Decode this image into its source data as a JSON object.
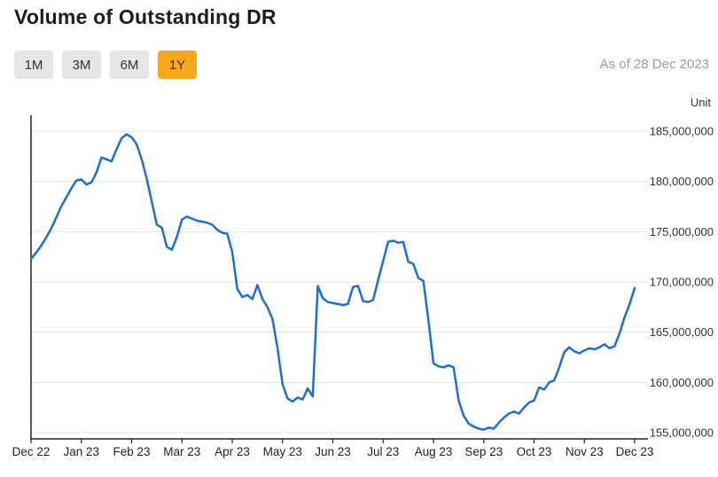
{
  "header": {
    "title": "Volume of Outstanding DR",
    "as_of": "As of 28 Dec 2023",
    "unit_label": "Unit"
  },
  "controls": {
    "range_buttons": [
      {
        "label": "1M",
        "active": false
      },
      {
        "label": "3M",
        "active": false
      },
      {
        "label": "6M",
        "active": false
      },
      {
        "label": "1Y",
        "active": true
      }
    ]
  },
  "colors": {
    "accent_active_range": "#f9a81b",
    "inactive_button_bg": "#e6e6e6",
    "line": "#1a6fd8",
    "grid": "#e2e2e2",
    "axis": "#222222",
    "muted_text": "#9b9b9b"
  },
  "chart_data": {
    "type": "line",
    "title": "Volume of Outstanding DR",
    "x_tick_labels": [
      "Dec 22",
      "Jan 23",
      "Feb 23",
      "Mar 23",
      "Apr 23",
      "May 23",
      "Jun 23",
      "Jul 23",
      "Aug 23",
      "Sep 23",
      "Oct 23",
      "Nov 23",
      "Dec 23"
    ],
    "y_tick_values": [
      155000000,
      160000000,
      165000000,
      170000000,
      175000000,
      180000000,
      185000000
    ],
    "ylim": [
      155000000,
      185000000
    ],
    "ylabel": "Unit",
    "grid": "horizontal",
    "legend": "none",
    "line_color": "#1a6fd8",
    "grid_color": "#e2e2e2",
    "axis_color": "#222222",
    "series": [
      {
        "name": "Volume of Outstanding DR",
        "values": [
          172300000,
          172900000,
          173600000,
          174400000,
          175300000,
          176400000,
          177500000,
          178400000,
          179300000,
          180100000,
          180200000,
          179700000,
          179900000,
          180900000,
          182400000,
          182200000,
          182000000,
          183200000,
          184300000,
          184700000,
          184400000,
          183700000,
          182200000,
          180300000,
          178000000,
          175700000,
          175400000,
          173500000,
          173200000,
          174500000,
          176200000,
          176500000,
          176300000,
          176100000,
          176000000,
          175900000,
          175700000,
          175200000,
          174900000,
          174800000,
          173000000,
          169300000,
          168500000,
          168700000,
          168300000,
          169700000,
          168300000,
          167500000,
          166300000,
          163400000,
          159800000,
          158400000,
          158100000,
          158500000,
          158300000,
          159400000,
          158600000,
          169600000,
          168400000,
          168000000,
          167900000,
          167800000,
          167700000,
          167800000,
          169500000,
          169600000,
          168100000,
          168000000,
          168200000,
          170200000,
          172100000,
          174000000,
          174100000,
          173900000,
          174000000,
          172000000,
          171800000,
          170400000,
          170100000,
          166200000,
          161900000,
          161600000,
          161500000,
          161700000,
          161500000,
          158200000,
          156700000,
          155900000,
          155600000,
          155400000,
          155300000,
          155500000,
          155400000,
          156000000,
          156500000,
          156900000,
          157100000,
          156900000,
          157500000,
          158000000,
          158200000,
          159500000,
          159300000,
          160000000,
          160200000,
          161500000,
          163000000,
          163500000,
          163100000,
          162900000,
          163200000,
          163400000,
          163300000,
          163500000,
          163800000,
          163400000,
          163600000,
          164900000,
          166500000,
          167800000,
          169400000
        ]
      }
    ]
  }
}
